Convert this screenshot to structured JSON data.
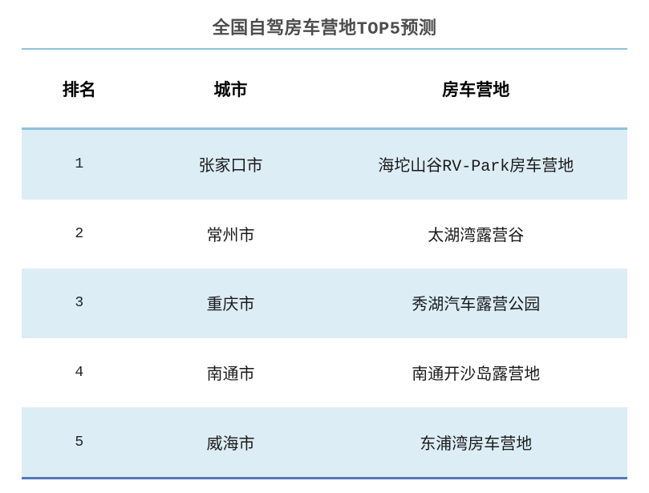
{
  "title": "全国自驾房车营地TOP5预测",
  "colors": {
    "title_color": "#4d4d4d",
    "light_line": "#8cc3d9",
    "dark_line": "#5578be",
    "row_highlight": "#ddedf5"
  },
  "table": {
    "headers": [
      "排名",
      "城市",
      "房车营地"
    ],
    "rows": [
      {
        "rank": "1",
        "city": "张家口市",
        "camp": "海坨山谷RV-Park房车营地"
      },
      {
        "rank": "2",
        "city": "常州市",
        "camp": "太湖湾露营谷"
      },
      {
        "rank": "3",
        "city": "重庆市",
        "camp": "秀湖汽车露营公园"
      },
      {
        "rank": "4",
        "city": "南通市",
        "camp": "南通开沙岛露营地"
      },
      {
        "rank": "5",
        "city": "威海市",
        "camp": "东浦湾房车营地"
      }
    ]
  },
  "chart_data": {
    "type": "table",
    "title": "全国自驾房车营地TOP5预测",
    "columns": [
      "排名",
      "城市",
      "房车营地"
    ],
    "rows": [
      [
        "1",
        "张家口市",
        "海坨山谷RV-Park房车营地"
      ],
      [
        "2",
        "常州市",
        "太湖湾露营谷"
      ],
      [
        "3",
        "重庆市",
        "秀湖汽车露营公园"
      ],
      [
        "4",
        "南通市",
        "南通开沙岛露营地"
      ],
      [
        "5",
        "威海市",
        "东浦湾房车营地"
      ]
    ],
    "layout": {
      "striped_rows": "odd rows highlighted light blue",
      "title_rule_color": "#8cc3d9",
      "header_rule_color": "#8cc3d9",
      "bottom_rule_color": "#5578be"
    }
  }
}
